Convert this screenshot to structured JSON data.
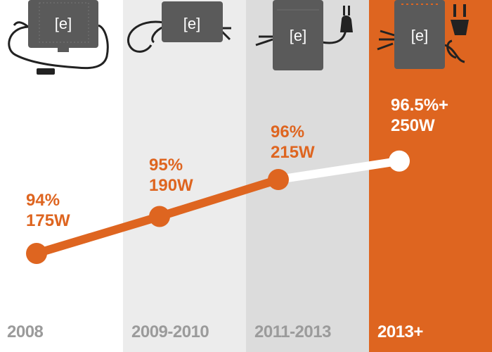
{
  "colors": {
    "accent": "#de6520",
    "muted_text": "#9b9b9b",
    "highlight_text": "#ffffff",
    "device": "#5a5a5a",
    "column_2008": "#ffffff",
    "column_2009_2010": "#ececec",
    "column_2011_2013": "#dcdcdc",
    "column_2013_plus": "#de6520"
  },
  "device_icon_text": "[e]",
  "chart_data": {
    "type": "line",
    "categories": [
      "2008",
      "2009-2010",
      "2011-2013",
      "2013+"
    ],
    "series": [
      {
        "values": [
          94,
          95,
          96,
          96.5
        ]
      }
    ],
    "power_w": [
      175,
      190,
      215,
      250
    ],
    "labels": [
      {
        "eff": "94%",
        "pwr": "175W"
      },
      {
        "eff": "95%",
        "pwr": "190W"
      },
      {
        "eff": "96%",
        "pwr": "215W"
      },
      {
        "eff": "96.5%+",
        "pwr": "250W"
      }
    ],
    "highlight_index": 3,
    "grid": false,
    "legend": "none"
  }
}
